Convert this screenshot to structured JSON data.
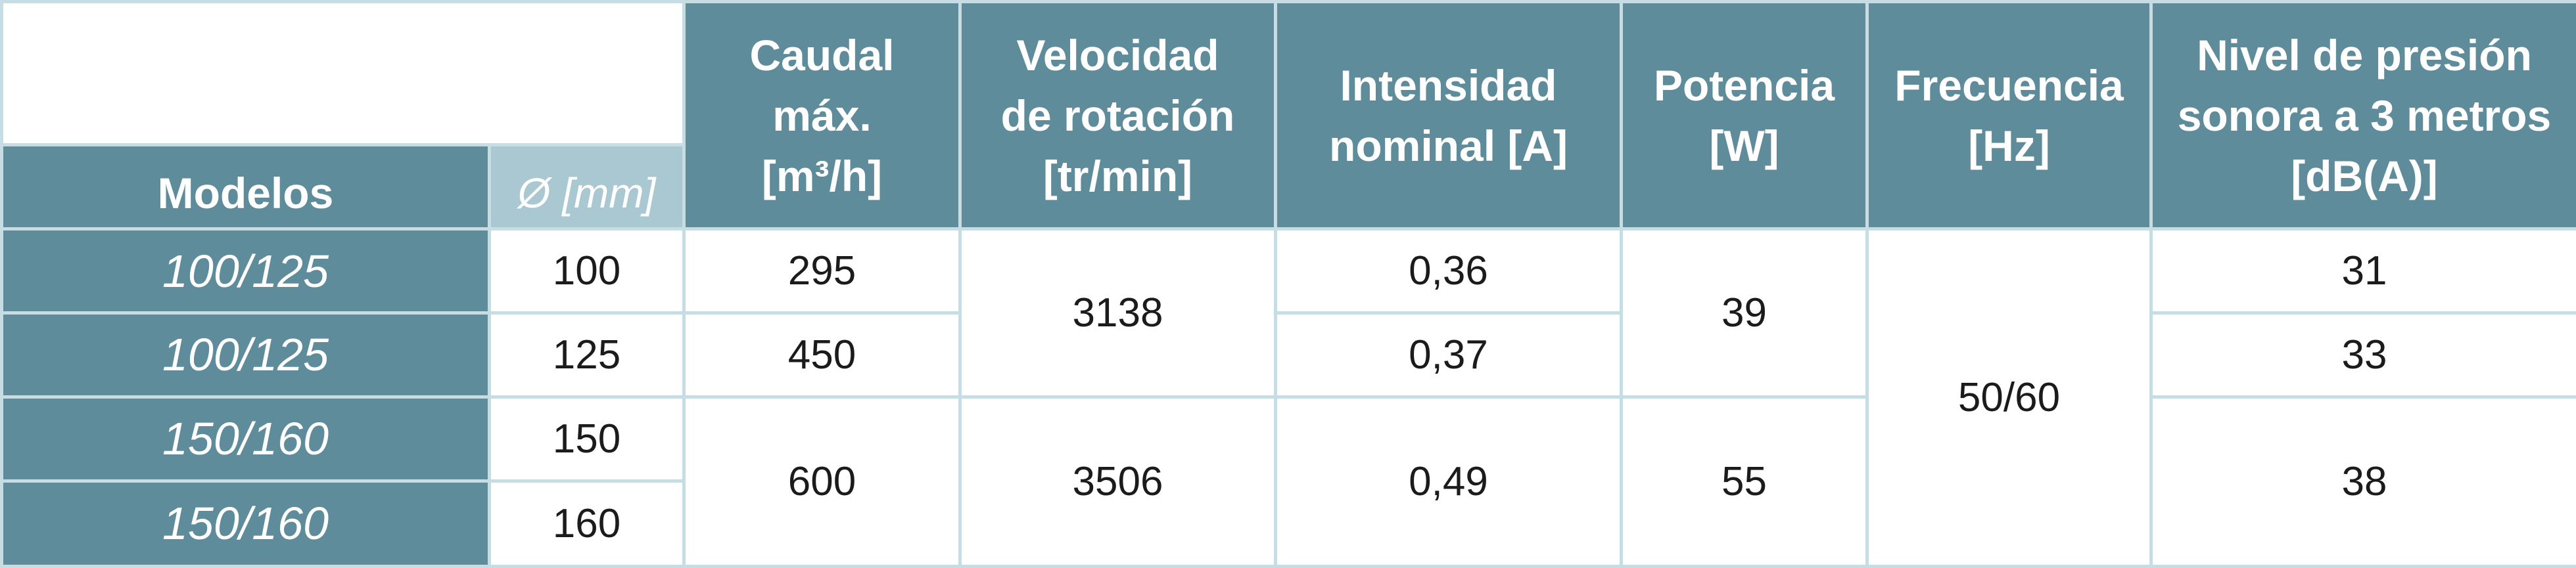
{
  "table": {
    "headers": {
      "modelos": "Modelos",
      "diametro": "Ø [mm]",
      "caudal": "Caudal\nmáx.\n[m³/h]",
      "velocidad": "Velocidad\nde rotación\n[tr/min]",
      "intensidad": "Intensidad\nnominal [A]",
      "potencia": "Potencia\n[W]",
      "frecuencia": "Frecuencia\n[Hz]",
      "nivel": "Nivel de presión\nsonora a 3 metros\n[dB(A)]"
    },
    "rows": [
      {
        "modelo": "100/125",
        "diametro": "100",
        "caudal": "295",
        "velocidad": "3138",
        "intensidad": "0,36",
        "potencia": "39",
        "frecuencia": "50/60",
        "nivel": "31"
      },
      {
        "modelo": "100/125",
        "diametro": "125",
        "caudal": "450",
        "intensidad": "0,37",
        "nivel": "33"
      },
      {
        "modelo": "150/160",
        "diametro": "150",
        "caudal": "600",
        "velocidad": "3506",
        "intensidad": "0,49",
        "potencia": "55",
        "nivel": "38"
      },
      {
        "modelo": "150/160",
        "diametro": "160"
      }
    ]
  }
}
